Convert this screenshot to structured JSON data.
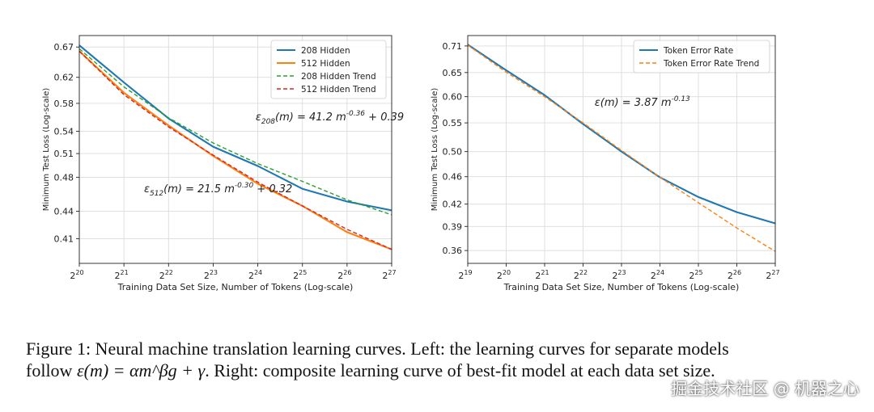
{
  "chart_data": [
    {
      "type": "line",
      "xscale": "log2",
      "yscale": "log",
      "xlabel": "Training Data Set Size, Number of Tokens (Log-scale)",
      "ylabel": "Minimum Test Loss (Log-scale)",
      "xlim": [
        20,
        27
      ],
      "ylim": [
        0.385,
        0.69
      ],
      "xticks": [
        20,
        21,
        22,
        23,
        24,
        25,
        26,
        27
      ],
      "yticks": [
        0.67,
        0.62,
        0.58,
        0.54,
        0.51,
        0.48,
        0.44,
        0.41
      ],
      "yticklabels": [
        "0.67",
        "0.62",
        "0.58",
        "0.54",
        "0.51",
        "0.48",
        "0.44",
        "0.41"
      ],
      "grid": true,
      "legend": "top-right",
      "series": [
        {
          "name": "208 Hidden",
          "color": "#1f77b4",
          "style": "solid",
          "x": [
            20,
            21,
            22,
            23,
            24,
            25,
            26,
            27
          ],
          "y": [
            0.673,
            0.612,
            0.558,
            0.519,
            0.494,
            0.466,
            0.451,
            0.441
          ]
        },
        {
          "name": "512 Hidden",
          "color": "#ff7f0e",
          "style": "solid",
          "x": [
            20,
            21,
            22,
            23,
            24,
            25,
            26,
            27
          ],
          "y": [
            0.663,
            0.596,
            0.548,
            0.507,
            0.472,
            0.446,
            0.417,
            0.399
          ]
        },
        {
          "name": "208 Hidden Trend",
          "color": "#2ca02c",
          "style": "dashed",
          "x": [
            20,
            21,
            22,
            23,
            24,
            25,
            26,
            27
          ],
          "y": [
            0.667,
            0.605,
            0.559,
            0.524,
            0.497,
            0.475,
            0.453,
            0.436
          ]
        },
        {
          "name": "512 Hidden Trend",
          "color": "#d62728",
          "style": "dashed",
          "x": [
            20,
            21,
            22,
            23,
            24,
            25,
            26,
            27
          ],
          "y": [
            0.663,
            0.593,
            0.546,
            0.508,
            0.474,
            0.446,
            0.42,
            0.399
          ]
        }
      ],
      "annotations": [
        {
          "base": "ε",
          "sub": "208",
          "mid": "(m) = 41.2 m",
          "sup": "-0.36",
          "tail": " + 0.39",
          "x": 23.95,
          "y": 0.555
        },
        {
          "base": "ε",
          "sub": "512",
          "mid": "(m) = 21.5 m",
          "sup": "-0.30",
          "tail": " + 0.32",
          "x": 21.45,
          "y": 0.462
        }
      ]
    },
    {
      "type": "line",
      "xscale": "log2",
      "yscale": "log",
      "xlabel": "Training Data Set Size, Number of Tokens (Log-scale)",
      "ylabel": "Minimum Test Loss (Log-scale)",
      "xlim": [
        19,
        27
      ],
      "ylim": [
        0.345,
        0.735
      ],
      "xticks": [
        19,
        20,
        21,
        22,
        23,
        24,
        25,
        26,
        27
      ],
      "yticks": [
        0.71,
        0.65,
        0.6,
        0.55,
        0.5,
        0.46,
        0.42,
        0.39,
        0.36
      ],
      "yticklabels": [
        "0.71",
        "0.65",
        "0.60",
        "0.55",
        "0.50",
        "0.46",
        "0.42",
        "0.39",
        "0.36"
      ],
      "grid": true,
      "legend": "top-right",
      "series": [
        {
          "name": "Token Error Rate",
          "color": "#1f77b4",
          "style": "solid",
          "x": [
            19,
            20,
            21,
            22,
            23,
            24,
            25,
            26,
            27
          ],
          "y": [
            0.713,
            0.655,
            0.603,
            0.548,
            0.5,
            0.459,
            0.43,
            0.409,
            0.394
          ]
        },
        {
          "name": "Token Error Rate Trend",
          "color": "#ff7f0e",
          "style": "dashed",
          "x": [
            19,
            20,
            21,
            22,
            23,
            24,
            25,
            26,
            27
          ],
          "y": [
            0.712,
            0.651,
            0.6,
            0.55,
            0.502,
            0.459,
            0.422,
            0.388,
            0.359
          ]
        }
      ],
      "annotations": [
        {
          "base": "ε",
          "sub": "",
          "mid": "(m) = 3.87 m",
          "sup": "-0.13",
          "tail": "",
          "x": 22.3,
          "y": 0.582
        }
      ]
    }
  ],
  "caption": {
    "line1": "Figure 1: Neural machine translation learning curves. Left: the learning curves for separate models",
    "line2_pre": "follow ",
    "line2_math": "ε(m) = αm^βg + γ",
    "line2_post": ". Right: composite learning curve of best-fit model at each data set size."
  },
  "watermark": "掘金技术社区 @ 机器之心"
}
